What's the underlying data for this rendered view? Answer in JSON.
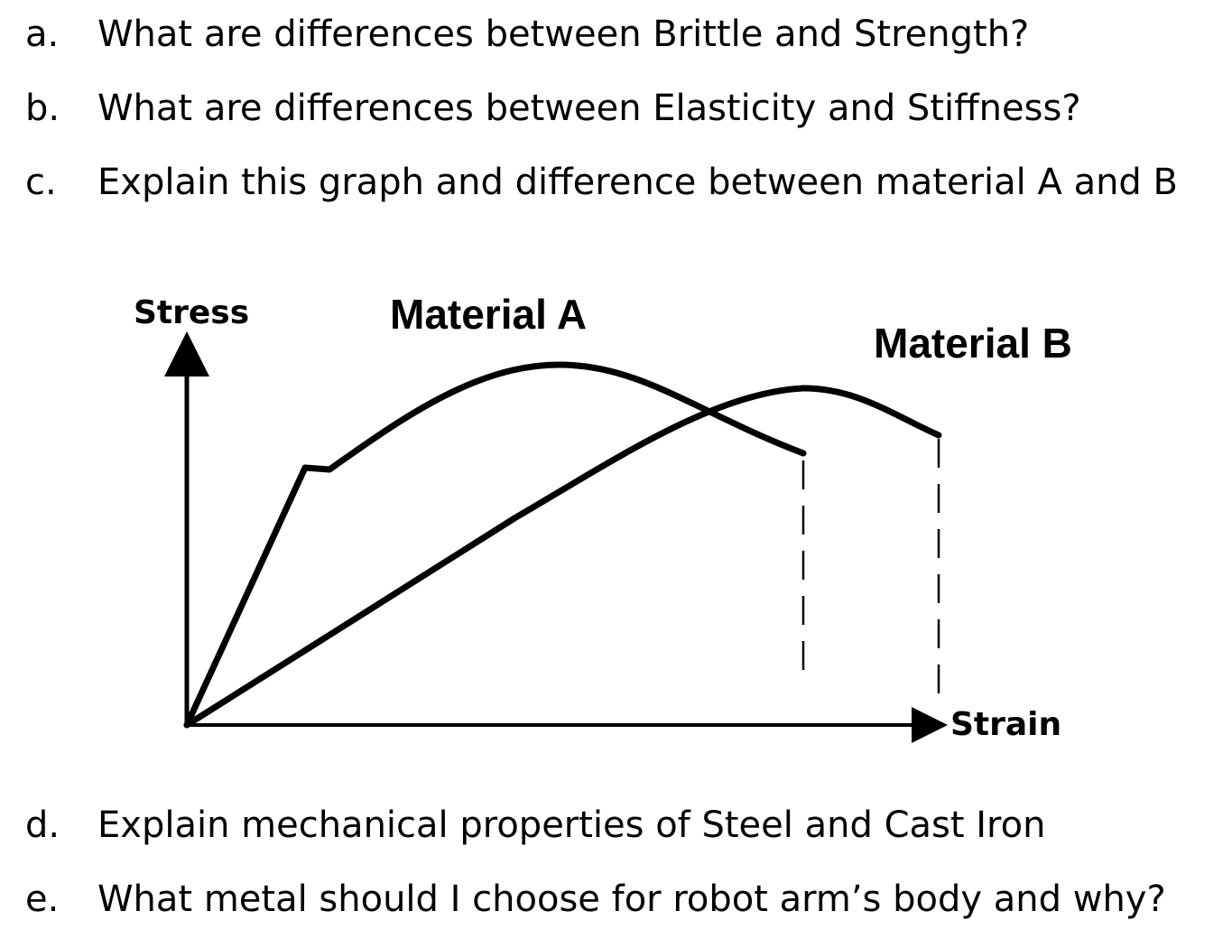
{
  "questions": [
    {
      "marker": "a.",
      "text": "What are differences between Brittle and Strength?"
    },
    {
      "marker": "b.",
      "text": "What are differences between Elasticity and Stiffness?"
    },
    {
      "marker": "c.",
      "text": "Explain this graph and difference between material A and B"
    },
    {
      "marker": "d.",
      "text": "Explain mechanical properties of Steel and Cast Iron"
    },
    {
      "marker": "e.",
      "text": "What metal should I choose for robot arm’s body and why?"
    }
  ],
  "figure": {
    "y_axis_label": "Stress",
    "x_axis_label": "Strain",
    "series": [
      {
        "name": "Material A"
      },
      {
        "name": "Material B"
      }
    ],
    "line_color": "#000000"
  }
}
